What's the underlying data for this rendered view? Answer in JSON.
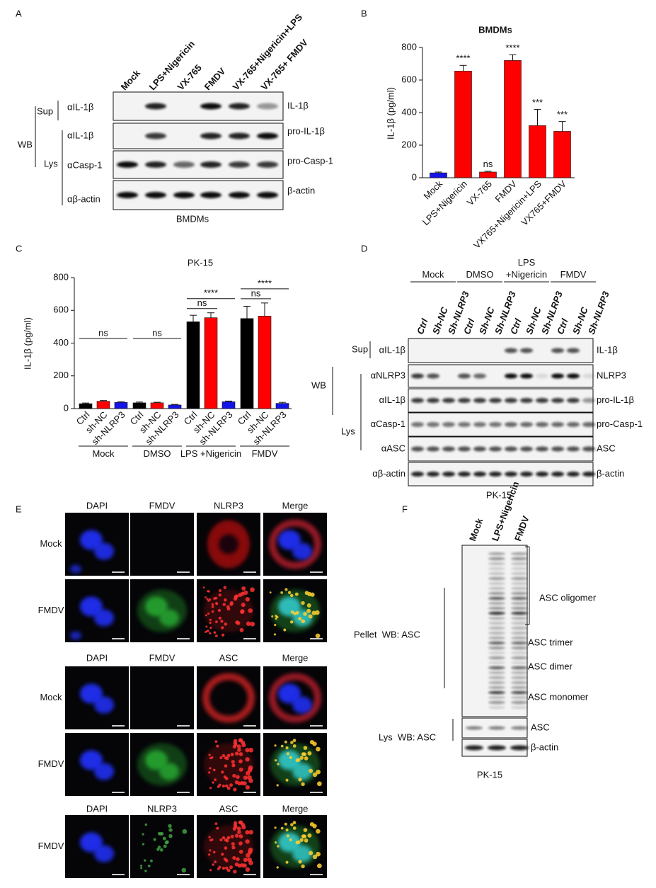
{
  "panel_letters": [
    "A",
    "B",
    "C",
    "D",
    "E",
    "F"
  ],
  "blot_a": {
    "lanes": [
      "Mock",
      "LPS+Nigericin",
      "VX-765",
      "FMDV",
      "VX-765+Nigericin+LPS",
      "VX-765+ FMDV"
    ],
    "method": "WB",
    "fractions": [
      "Sup",
      "Lys"
    ],
    "rows": [
      {
        "antibody": "αIL-1β",
        "target": "IL-1β"
      },
      {
        "antibody": "αIL-1β",
        "target": "pro-IL-1β"
      },
      {
        "antibody": "αCasp-1",
        "target": "pro-Casp-1"
      },
      {
        "antibody": "αβ-actin",
        "target": "β-actin"
      }
    ],
    "caption": "BMDMs"
  },
  "chart_data": [
    {
      "type": "bar",
      "title": "BMDMs",
      "y_label": "IL-1β (pg/ml)",
      "categories": [
        "Mock",
        "LPS+Nigericin",
        "VX-765",
        "FMDV",
        "VX765+Nigericin+LPS",
        "VX765+FMDV"
      ],
      "values": [
        30,
        655,
        35,
        720,
        320,
        285
      ],
      "errors": [
        5,
        35,
        5,
        35,
        100,
        60
      ],
      "colors": [
        "#1414e6",
        "#ff0000",
        "#ff0000",
        "#ff0000",
        "#ff0000",
        "#ff0000"
      ],
      "annotations": [
        null,
        "****",
        "ns",
        "****",
        "***",
        "***"
      ],
      "ylim": [
        0,
        800
      ],
      "yticks": [
        0,
        200,
        400,
        600,
        800
      ]
    },
    {
      "type": "grouped_bar",
      "title": "PK-15",
      "y_label": "IL-1β (pg/ml)",
      "categories": [
        "Mock",
        "DMSO",
        "LPS +Nigericin",
        "FMDV"
      ],
      "series": [
        {
          "name": "Ctrl",
          "color": "#000000",
          "values": [
            30,
            35,
            530,
            550
          ],
          "errors": [
            4,
            5,
            40,
            75
          ]
        },
        {
          "name": "sh-NC",
          "color": "#ff0000",
          "values": [
            45,
            35,
            555,
            565
          ],
          "errors": [
            4,
            4,
            30,
            80
          ]
        },
        {
          "name": "sh-NLRP3",
          "color": "#1414e6",
          "values": [
            38,
            22,
            42,
            32
          ],
          "errors": [
            4,
            4,
            4,
            6
          ]
        }
      ],
      "annotations": [
        [
          "ns"
        ],
        [
          "ns"
        ],
        [
          "****",
          "ns"
        ],
        [
          "****",
          "ns"
        ]
      ],
      "ylim": [
        0,
        800
      ],
      "yticks": [
        0,
        200,
        400,
        600,
        800
      ]
    }
  ],
  "blot_d": {
    "groups": [
      "Mock",
      "DMSO",
      "LPS +Nigericin",
      "FMDV"
    ],
    "lanes": [
      "Ctrl",
      "Sh-NC",
      "Sh-NLRP3"
    ],
    "method": "WB",
    "fractions": [
      "Sup",
      "Lys"
    ],
    "rows": [
      {
        "antibody": "αIL-1β",
        "target": "IL-1β"
      },
      {
        "antibody": "αNLRP3",
        "target": "NLRP3"
      },
      {
        "antibody": "αIL-1β",
        "target": "pro-IL-1β"
      },
      {
        "antibody": "αCasp-1",
        "target": "pro-Casp-1"
      },
      {
        "antibody": "αASC",
        "target": "ASC"
      },
      {
        "antibody": "αβ-actin",
        "target": "β-actin"
      }
    ],
    "caption": "PK-15"
  },
  "imaging_e": {
    "blocks": [
      {
        "columns": [
          "DAPI",
          "FMDV",
          "NLRP3",
          "Merge"
        ],
        "rows": [
          "Mock",
          "FMDV"
        ]
      },
      {
        "columns": [
          "DAPI",
          "FMDV",
          "ASC",
          "Merge"
        ],
        "rows": [
          "Mock",
          "FMDV"
        ]
      },
      {
        "columns": [
          "DAPI",
          "NLRP3",
          "ASC",
          "Merge"
        ],
        "rows": [
          "FMDV"
        ]
      }
    ]
  },
  "blot_f": {
    "lanes": [
      "Mock",
      "LPS+Nigericin",
      "FMDV"
    ],
    "pellet_label": "Pellet  WB: ASC",
    "lysate_label": "Lys  WB: ASC",
    "bands": [
      "ASC oligomer",
      "ASC trimer",
      "ASC  dimer",
      "ASC monomer"
    ],
    "lysate_rows": [
      "ASC",
      "β-actin"
    ],
    "caption": "PK-15"
  }
}
